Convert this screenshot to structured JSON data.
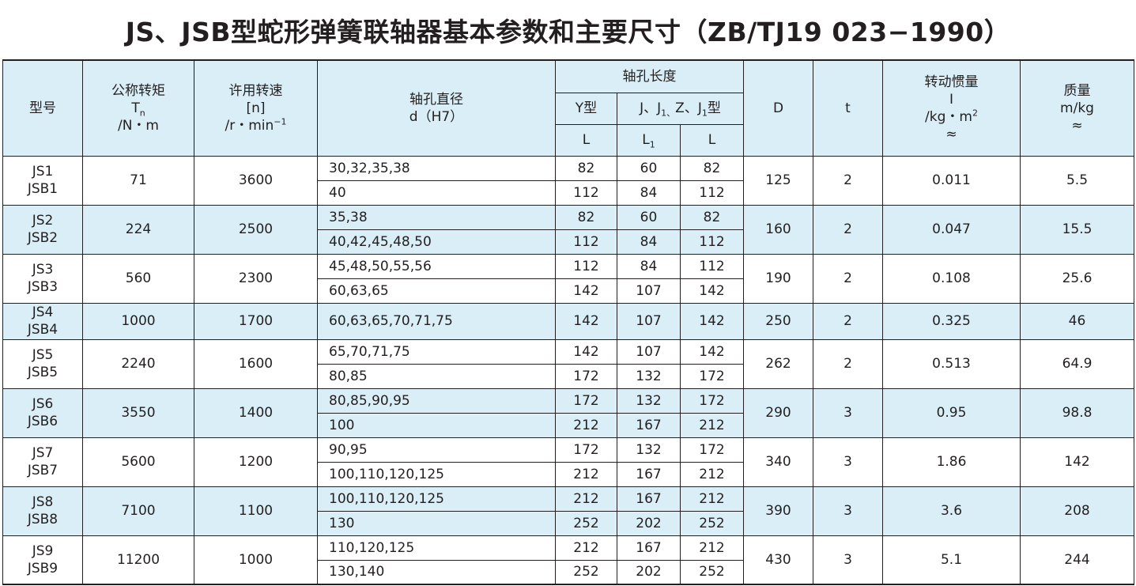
{
  "title": "JS、JSB型蛇形弹簧联轴器基本参数和主要尺寸（ZB/TJ19 023−1990）",
  "headers": {
    "model": "型号",
    "torque": {
      "line1": "公称转矩",
      "line2_main": "T",
      "line2_sub": "n",
      "line3": "/N・m"
    },
    "speed": {
      "line1": "许用转速",
      "line2": "[n]",
      "line3_main": "/r・min",
      "line3_sup": "−1"
    },
    "bore": {
      "line1": "轴孔直径",
      "line2": "d（H7）"
    },
    "hub_length": "轴孔长度",
    "y_type": "Y型",
    "j_type": {
      "p1": "J、J",
      "s1": "1、",
      "p2": "Z、J",
      "s2": "1",
      "p3": "型"
    },
    "L": "L",
    "L1_main": "L",
    "L1_sub": "1",
    "D": "D",
    "t": "t",
    "inertia": {
      "line1": "转动惯量",
      "line2": "I",
      "line3_main": "/kg・m",
      "line3_sup": "2",
      "line4": "≈"
    },
    "mass": {
      "line1": "质量",
      "line2": "m/kg",
      "line3": "≈"
    }
  },
  "rows": [
    {
      "model1": "JS1",
      "model2": "JSB1",
      "torque": "71",
      "speed": "3600",
      "D": "125",
      "t": "2",
      "inertia": "0.011",
      "mass": "5.5",
      "sub": [
        {
          "bore": "30,32,35,38",
          "Y_L": "82",
          "J_L1": "60",
          "J_L": "82"
        },
        {
          "bore": "40",
          "Y_L": "112",
          "J_L1": "84",
          "J_L": "112"
        }
      ]
    },
    {
      "model1": "JS2",
      "model2": "JSB2",
      "torque": "224",
      "speed": "2500",
      "D": "160",
      "t": "2",
      "inertia": "0.047",
      "mass": "15.5",
      "sub": [
        {
          "bore": "35,38",
          "Y_L": "82",
          "J_L1": "60",
          "J_L": "82"
        },
        {
          "bore": "40,42,45,48,50",
          "Y_L": "112",
          "J_L1": "84",
          "J_L": "112"
        }
      ]
    },
    {
      "model1": "JS3",
      "model2": "JSB3",
      "torque": "560",
      "speed": "2300",
      "D": "190",
      "t": "2",
      "inertia": "0.108",
      "mass": "25.6",
      "sub": [
        {
          "bore": "45,48,50,55,56",
          "Y_L": "112",
          "J_L1": "84",
          "J_L": "112"
        },
        {
          "bore": "60,63,65",
          "Y_L": "142",
          "J_L1": "107",
          "J_L": "142"
        }
      ]
    },
    {
      "model1": "JS4",
      "model2": "JSB4",
      "torque": "1000",
      "speed": "1700",
      "D": "250",
      "t": "2",
      "inertia": "0.325",
      "mass": "46",
      "sub": [
        {
          "bore": "60,63,65,70,71,75",
          "Y_L": "142",
          "J_L1": "107",
          "J_L": "142"
        }
      ]
    },
    {
      "model1": "JS5",
      "model2": "JSB5",
      "torque": "2240",
      "speed": "1600",
      "D": "262",
      "t": "2",
      "inertia": "0.513",
      "mass": "64.9",
      "sub": [
        {
          "bore": "65,70,71,75",
          "Y_L": "142",
          "J_L1": "107",
          "J_L": "142"
        },
        {
          "bore": "80,85",
          "Y_L": "172",
          "J_L1": "132",
          "J_L": "172"
        }
      ]
    },
    {
      "model1": "JS6",
      "model2": "JSB6",
      "torque": "3550",
      "speed": "1400",
      "D": "290",
      "t": "3",
      "inertia": "0.95",
      "mass": "98.8",
      "sub": [
        {
          "bore": "80,85,90,95",
          "Y_L": "172",
          "J_L1": "132",
          "J_L": "172"
        },
        {
          "bore": "100",
          "Y_L": "212",
          "J_L1": "167",
          "J_L": "212"
        }
      ]
    },
    {
      "model1": "JS7",
      "model2": "JSB7",
      "torque": "5600",
      "speed": "1200",
      "D": "340",
      "t": "3",
      "inertia": "1.86",
      "mass": "142",
      "sub": [
        {
          "bore": "90,95",
          "Y_L": "172",
          "J_L1": "132",
          "J_L": "172"
        },
        {
          "bore": "100,110,120,125",
          "Y_L": "212",
          "J_L1": "167",
          "J_L": "212"
        }
      ]
    },
    {
      "model1": "JS8",
      "model2": "JSB8",
      "torque": "7100",
      "speed": "1100",
      "D": "390",
      "t": "3",
      "inertia": "3.6",
      "mass": "208",
      "sub": [
        {
          "bore": "100,110,120,125",
          "Y_L": "212",
          "J_L1": "167",
          "J_L": "212"
        },
        {
          "bore": "130",
          "Y_L": "252",
          "J_L1": "202",
          "J_L": "252"
        }
      ]
    },
    {
      "model1": "JS9",
      "model2": "JSB9",
      "torque": "11200",
      "speed": "1000",
      "D": "430",
      "t": "3",
      "inertia": "5.1",
      "mass": "244",
      "sub": [
        {
          "bore": "110,120,125",
          "Y_L": "212",
          "J_L1": "167",
          "J_L": "212"
        },
        {
          "bore": "130,140",
          "Y_L": "252",
          "J_L1": "202",
          "J_L": "252"
        }
      ]
    }
  ],
  "colors": {
    "row_shade": "#d9eef7",
    "text": "#231f20",
    "rule": "#231f20"
  }
}
